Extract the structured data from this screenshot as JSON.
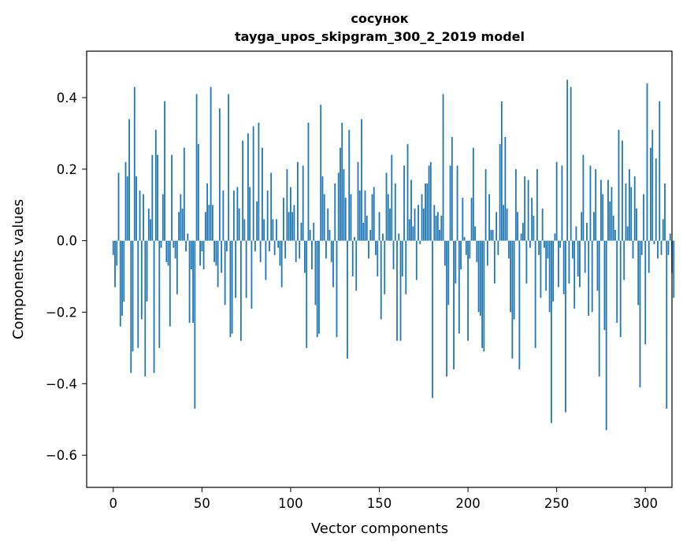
{
  "chart_data": {
    "type": "bar",
    "title_line1": "сосунок",
    "title_line2": "tayga_upos_skipgram_300_2_2019 model",
    "xlabel": "Vector components",
    "ylabel": "Components values",
    "xlim": [
      -15,
      315
    ],
    "ylim": [
      -0.69,
      0.53
    ],
    "xticks": [
      0,
      50,
      100,
      150,
      200,
      250,
      300
    ],
    "xtick_labels": [
      "0",
      "50",
      "100",
      "150",
      "200",
      "250",
      "300"
    ],
    "yticks": [
      -0.6,
      -0.4,
      -0.2,
      0.0,
      0.2,
      0.4
    ],
    "ytick_labels": [
      "−0.6",
      "−0.4",
      "−0.2",
      "0.0",
      "0.2",
      "0.4"
    ],
    "bar_color": "#1f77b4",
    "values": [
      -0.04,
      -0.13,
      -0.07,
      0.19,
      -0.24,
      -0.21,
      -0.17,
      0.22,
      0.18,
      0.34,
      -0.37,
      -0.31,
      0.43,
      0.18,
      -0.3,
      0.14,
      -0.22,
      0.13,
      -0.38,
      -0.17,
      0.09,
      0.06,
      0.24,
      -0.37,
      0.31,
      0.24,
      -0.3,
      -0.02,
      0.13,
      0.39,
      -0.06,
      -0.07,
      -0.24,
      0.24,
      -0.02,
      -0.05,
      -0.15,
      0.08,
      0.13,
      0.09,
      0.26,
      -0.03,
      0.02,
      -0.23,
      -0.08,
      -0.23,
      -0.47,
      0.41,
      0.27,
      -0.07,
      -0.03,
      -0.08,
      0.08,
      0.16,
      0.1,
      0.43,
      0.1,
      -0.06,
      -0.07,
      -0.13,
      0.37,
      -0.09,
      0.14,
      -0.18,
      -0.03,
      0.41,
      -0.27,
      -0.26,
      0.14,
      -0.16,
      0.15,
      0.09,
      -0.28,
      0.28,
      0.06,
      -0.16,
      0.3,
      0.15,
      -0.19,
      0.32,
      -0.03,
      0.11,
      0.33,
      -0.06,
      0.26,
      0.06,
      -0.11,
      0.14,
      -0.03,
      0.19,
      0.06,
      -0.04,
      0.06,
      -0.02,
      -0.07,
      -0.13,
      0.12,
      -0.05,
      0.2,
      0.08,
      0.15,
      0.08,
      0.1,
      -0.06,
      0.22,
      -0.05,
      0.05,
      0.21,
      -0.09,
      -0.3,
      0.33,
      0.03,
      -0.08,
      0.05,
      -0.18,
      -0.27,
      -0.26,
      0.38,
      0.18,
      0.13,
      -0.05,
      0.09,
      0.03,
      -0.06,
      -0.13,
      0.16,
      -0.27,
      0.19,
      0.26,
      0.33,
      0.2,
      0.12,
      -0.33,
      0.31,
      0.13,
      -0.1,
      0.01,
      -0.14,
      0.22,
      0.14,
      0.34,
      0.05,
      0.14,
      0.07,
      -0.05,
      0.03,
      0.13,
      0.15,
      -0.04,
      -0.1,
      0.08,
      -0.22,
      0.02,
      -0.15,
      0.19,
      0.13,
      0.09,
      0.24,
      -0.08,
      0.16,
      -0.28,
      0.02,
      -0.28,
      -0.1,
      0.21,
      -0.15,
      0.27,
      0.06,
      0.17,
      0.04,
      0.09,
      -0.11,
      0.1,
      -0.01,
      0.13,
      0.09,
      0.16,
      0.16,
      0.21,
      0.22,
      -0.44,
      0.1,
      0.07,
      0.08,
      0.03,
      0.07,
      0.41,
      -0.07,
      -0.38,
      -0.18,
      0.21,
      0.29,
      -0.36,
      -0.12,
      0.21,
      -0.26,
      -0.08,
      0.12,
      0.01,
      -0.04,
      -0.28,
      -0.05,
      0.12,
      0.26,
      0.04,
      -0.06,
      -0.2,
      -0.21,
      -0.3,
      -0.31,
      0.2,
      -0.07,
      0.13,
      0.03,
      0.03,
      -0.12,
      0.08,
      -0.04,
      0.27,
      0.39,
      0.1,
      0.29,
      0.09,
      -0.05,
      -0.2,
      -0.33,
      -0.22,
      0.2,
      0.08,
      -0.36,
      0.02,
      0.05,
      0.18,
      -0.12,
      0.17,
      -0.02,
      0.12,
      0.07,
      -0.3,
      0.2,
      -0.04,
      -0.16,
      0.09,
      -0.02,
      -0.14,
      -0.05,
      -0.2,
      -0.51,
      -0.17,
      0.02,
      0.22,
      -0.13,
      -0.02,
      0.21,
      -0.15,
      -0.48,
      0.45,
      -0.12,
      0.43,
      -0.05,
      -0.19,
      0.04,
      -0.1,
      -0.13,
      0.08,
      0.24,
      -0.09,
      0.05,
      -0.21,
      0.21,
      -0.2,
      0.08,
      0.2,
      -0.14,
      -0.38,
      0.17,
      0.13,
      -0.25,
      -0.53,
      0.17,
      0.11,
      0.15,
      0.07,
      0.03,
      -0.23,
      0.31,
      -0.27,
      0.28,
      -0.11,
      0.16,
      0.04,
      0.2,
      0.15,
      -0.05,
      0.18,
      0.09,
      -0.18,
      -0.41,
      -0.04,
      0.13,
      -0.29,
      0.44,
      -0.09,
      0.26,
      0.31,
      -0.01,
      0.23,
      -0.05,
      0.39,
      -0.04,
      0.06,
      0.16,
      -0.47,
      -0.04,
      0.02,
      -0.09,
      -0.16
    ]
  }
}
